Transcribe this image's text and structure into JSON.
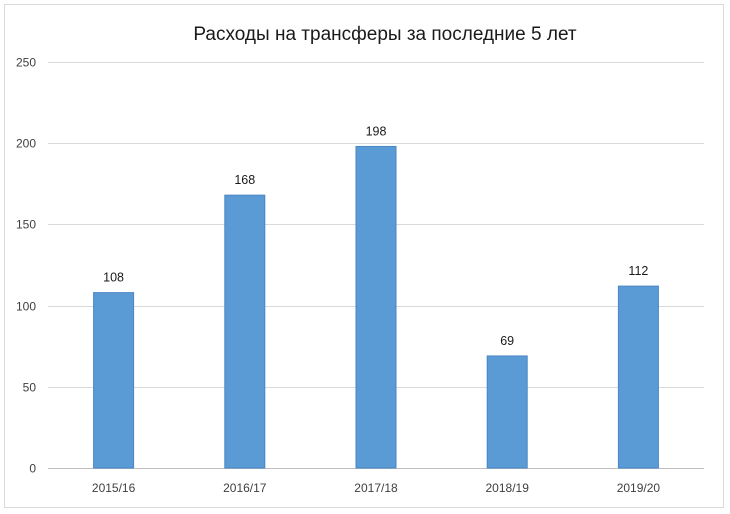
{
  "chart_data": {
    "type": "bar",
    "title": "Расходы на трансферы за последние 5 лет",
    "xlabel": "",
    "ylabel": "",
    "categories": [
      "2015/16",
      "2016/17",
      "2017/18",
      "2018/19",
      "2019/20"
    ],
    "values": [
      108,
      168,
      198,
      69,
      112
    ],
    "data_labels": [
      "108",
      "168",
      "198",
      "69",
      "112"
    ],
    "ylim": [
      0,
      250
    ],
    "yticks": [
      0,
      50,
      100,
      150,
      200,
      250
    ],
    "ytick_labels": [
      "0",
      "50",
      "100",
      "150",
      "200",
      "250"
    ],
    "grid": true,
    "legend": "none",
    "bar_color": "#5b9bd5"
  }
}
